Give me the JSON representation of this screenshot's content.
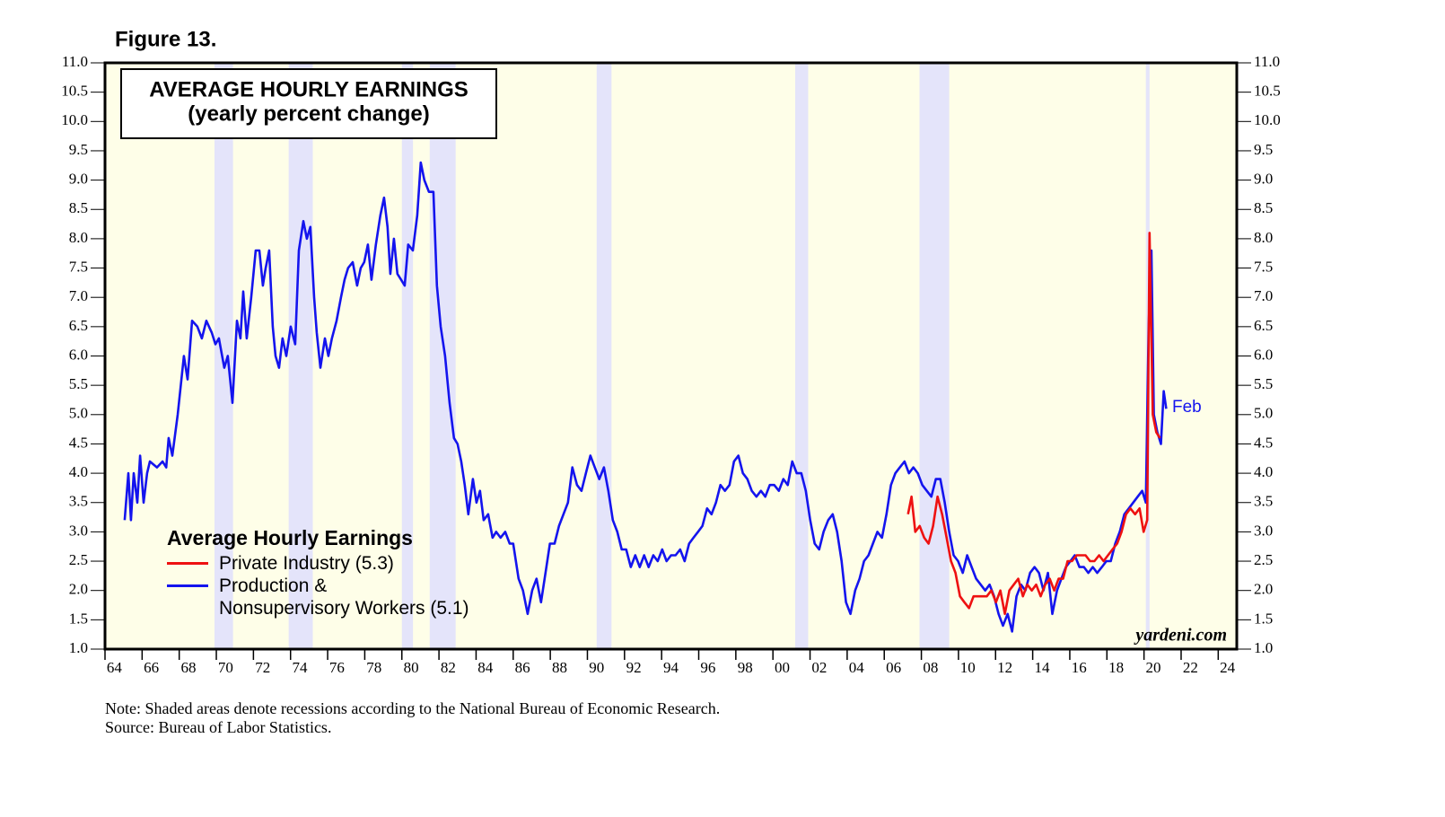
{
  "figure_label": "Figure 13.",
  "chart_data": {
    "type": "line",
    "title": "AVERAGE HOURLY EARNINGS",
    "subtitle": "(yearly percent change)",
    "legend_title": "Average Hourly Earnings",
    "annotation": "Feb",
    "watermark": "yardeni.com",
    "xlim": [
      1964,
      2025
    ],
    "ylim": [
      1,
      11
    ],
    "background": "#fefee8",
    "recession_color": "#e4e4fa",
    "recessions": [
      [
        1969.9,
        1970.9
      ],
      [
        1973.9,
        1975.2
      ],
      [
        1980.0,
        1980.6
      ],
      [
        1981.5,
        1982.9
      ],
      [
        1990.5,
        1991.3
      ],
      [
        2001.2,
        2001.9
      ],
      [
        2007.9,
        2009.5
      ],
      [
        2020.1,
        2020.3
      ]
    ],
    "xticks": [
      {
        "value": 1964,
        "label": "64"
      },
      {
        "value": 1966,
        "label": "66"
      },
      {
        "value": 1968,
        "label": "68"
      },
      {
        "value": 1970,
        "label": "70"
      },
      {
        "value": 1972,
        "label": "72"
      },
      {
        "value": 1974,
        "label": "74"
      },
      {
        "value": 1976,
        "label": "76"
      },
      {
        "value": 1978,
        "label": "78"
      },
      {
        "value": 1980,
        "label": "80"
      },
      {
        "value": 1982,
        "label": "82"
      },
      {
        "value": 1984,
        "label": "84"
      },
      {
        "value": 1986,
        "label": "86"
      },
      {
        "value": 1988,
        "label": "88"
      },
      {
        "value": 1990,
        "label": "90"
      },
      {
        "value": 1992,
        "label": "92"
      },
      {
        "value": 1994,
        "label": "94"
      },
      {
        "value": 1996,
        "label": "96"
      },
      {
        "value": 1998,
        "label": "98"
      },
      {
        "value": 2000,
        "label": "00"
      },
      {
        "value": 2002,
        "label": "02"
      },
      {
        "value": 2004,
        "label": "04"
      },
      {
        "value": 2006,
        "label": "06"
      },
      {
        "value": 2008,
        "label": "08"
      },
      {
        "value": 2010,
        "label": "10"
      },
      {
        "value": 2012,
        "label": "12"
      },
      {
        "value": 2014,
        "label": "14"
      },
      {
        "value": 2016,
        "label": "16"
      },
      {
        "value": 2018,
        "label": "18"
      },
      {
        "value": 2020,
        "label": "20"
      },
      {
        "value": 2022,
        "label": "22"
      },
      {
        "value": 2024,
        "label": "24"
      }
    ],
    "yticks": [
      {
        "value": 1,
        "label": "1.0"
      },
      1.5,
      {
        "value": 2,
        "label": "2.0"
      },
      2.5,
      {
        "value": 3,
        "label": "3.0"
      },
      3.5,
      {
        "value": 4,
        "label": "4.0"
      },
      4.5,
      {
        "value": 5,
        "label": "5.0"
      },
      5.5,
      {
        "value": 6,
        "label": "6.0"
      },
      6.5,
      {
        "value": 7,
        "label": "7.0"
      },
      7.5,
      {
        "value": 8,
        "label": "8.0"
      },
      8.5,
      {
        "value": 9,
        "label": "9.0"
      },
      9.5,
      {
        "value": 10,
        "label": "10.0"
      },
      10.5,
      {
        "value": 11,
        "label": "11.0"
      }
    ],
    "series": [
      {
        "name": "Production &\nNonsupervisory Workers (5.1)",
        "color": "#1414ee",
        "x": [
          1965.06,
          1965.26,
          1965.4,
          1965.55,
          1965.74,
          1965.89,
          1966.08,
          1966.27,
          1966.42,
          1966.8,
          1967.1,
          1967.3,
          1967.43,
          1967.63,
          1967.92,
          1968.25,
          1968.45,
          1968.69,
          1968.98,
          1969.22,
          1969.46,
          1969.75,
          1969.95,
          1970.14,
          1970.43,
          1970.62,
          1970.87,
          1971.11,
          1971.3,
          1971.45,
          1971.64,
          1971.88,
          1972.12,
          1972.32,
          1972.51,
          1972.66,
          1972.85,
          1973.04,
          1973.19,
          1973.38,
          1973.57,
          1973.77,
          1974.01,
          1974.25,
          1974.45,
          1974.69,
          1974.88,
          1975.07,
          1975.27,
          1975.41,
          1975.61,
          1975.85,
          1976.04,
          1976.23,
          1976.48,
          1976.72,
          1976.91,
          1977.1,
          1977.35,
          1977.59,
          1977.78,
          1977.97,
          1978.17,
          1978.36,
          1978.6,
          1978.84,
          1979.04,
          1979.23,
          1979.38,
          1979.57,
          1979.76,
          1979.96,
          1980.15,
          1980.34,
          1980.59,
          1980.83,
          1981.02,
          1981.21,
          1981.46,
          1981.7,
          1981.89,
          1982.09,
          1982.33,
          1982.57,
          1982.81,
          1983.0,
          1983.2,
          1983.39,
          1983.58,
          1983.83,
          1984.02,
          1984.21,
          1984.41,
          1984.65,
          1984.89,
          1985.08,
          1985.32,
          1985.57,
          1985.81,
          1986.0,
          1986.29,
          1986.53,
          1986.78,
          1987.02,
          1987.26,
          1987.5,
          1987.74,
          1987.98,
          1988.23,
          1988.47,
          1988.71,
          1988.95,
          1989.19,
          1989.44,
          1989.68,
          1989.92,
          1990.16,
          1990.4,
          1990.64,
          1990.89,
          1991.13,
          1991.37,
          1991.61,
          1991.85,
          1992.09,
          1992.34,
          1992.58,
          1992.82,
          1993.06,
          1993.3,
          1993.55,
          1993.79,
          1994.03,
          1994.27,
          1994.51,
          1994.75,
          1995.0,
          1995.24,
          1995.48,
          1995.72,
          1995.96,
          1996.2,
          1996.45,
          1996.69,
          1996.93,
          1997.17,
          1997.41,
          1997.66,
          1997.9,
          1998.14,
          1998.38,
          1998.62,
          1998.86,
          1999.11,
          1999.35,
          1999.59,
          1999.83,
          2000.07,
          2000.32,
          2000.56,
          2000.8,
          2001.04,
          2001.28,
          2001.53,
          2001.77,
          2002.01,
          2002.25,
          2002.49,
          2002.73,
          2002.98,
          2003.22,
          2003.46,
          2003.7,
          2003.94,
          2004.18,
          2004.43,
          2004.67,
          2004.91,
          2005.15,
          2005.39,
          2005.63,
          2005.88,
          2006.12,
          2006.36,
          2006.6,
          2006.84,
          2007.09,
          2007.33,
          2007.57,
          2007.81,
          2008.05,
          2008.29,
          2008.54,
          2008.78,
          2009.02,
          2009.26,
          2009.5,
          2009.74,
          2009.98,
          2010.23,
          2010.47,
          2010.71,
          2010.95,
          2011.2,
          2011.44,
          2011.68,
          2011.92,
          2012.16,
          2012.4,
          2012.65,
          2012.89,
          2013.13,
          2013.37,
          2013.61,
          2013.86,
          2014.1,
          2014.34,
          2014.58,
          2014.82,
          2015.06,
          2015.31,
          2015.55,
          2015.79,
          2016.03,
          2016.27,
          2016.52,
          2016.76,
          2017.0,
          2017.24,
          2017.48,
          2017.73,
          2017.97,
          2018.21,
          2018.45,
          2018.69,
          2018.94,
          2019.18,
          2019.42,
          2019.66,
          2019.9,
          2020.1,
          2020.25,
          2020.4,
          2020.53,
          2020.72,
          2020.91,
          2021.06,
          2021.2
        ],
        "values": [
          3.2,
          4.0,
          3.2,
          4.0,
          3.5,
          4.3,
          3.5,
          4.0,
          4.2,
          4.1,
          4.2,
          4.1,
          4.6,
          4.3,
          5.0,
          6.0,
          5.6,
          6.6,
          6.5,
          6.3,
          6.6,
          6.4,
          6.2,
          6.3,
          5.8,
          6.0,
          5.2,
          6.6,
          6.3,
          7.1,
          6.3,
          7.0,
          7.8,
          7.8,
          7.2,
          7.5,
          7.8,
          6.5,
          6.0,
          5.8,
          6.3,
          6.0,
          6.5,
          6.2,
          7.8,
          8.3,
          8.0,
          8.2,
          7.0,
          6.4,
          5.8,
          6.3,
          6.0,
          6.3,
          6.6,
          7.0,
          7.3,
          7.5,
          7.6,
          7.2,
          7.5,
          7.6,
          7.9,
          7.3,
          7.9,
          8.4,
          8.7,
          8.2,
          7.4,
          8.0,
          7.4,
          7.3,
          7.2,
          7.9,
          7.8,
          8.4,
          9.3,
          9.0,
          8.8,
          8.8,
          7.2,
          6.5,
          6.0,
          5.2,
          4.6,
          4.5,
          4.2,
          3.8,
          3.3,
          3.9,
          3.5,
          3.7,
          3.2,
          3.3,
          2.9,
          3.0,
          2.9,
          3.0,
          2.8,
          2.8,
          2.2,
          2.0,
          1.6,
          2.0,
          2.2,
          1.8,
          2.3,
          2.8,
          2.8,
          3.1,
          3.3,
          3.5,
          4.1,
          3.8,
          3.7,
          4.0,
          4.3,
          4.1,
          3.9,
          4.1,
          3.7,
          3.2,
          3.0,
          2.7,
          2.7,
          2.4,
          2.6,
          2.4,
          2.6,
          2.4,
          2.6,
          2.5,
          2.7,
          2.5,
          2.6,
          2.6,
          2.7,
          2.5,
          2.8,
          2.9,
          3.0,
          3.1,
          3.4,
          3.3,
          3.5,
          3.8,
          3.7,
          3.8,
          4.2,
          4.3,
          4.0,
          3.9,
          3.7,
          3.6,
          3.7,
          3.6,
          3.8,
          3.8,
          3.7,
          3.9,
          3.8,
          4.2,
          4.0,
          4.0,
          3.7,
          3.2,
          2.8,
          2.7,
          3.0,
          3.2,
          3.3,
          3.0,
          2.5,
          1.8,
          1.6,
          2.0,
          2.2,
          2.5,
          2.6,
          2.8,
          3.0,
          2.9,
          3.3,
          3.8,
          4.0,
          4.1,
          4.2,
          4.0,
          4.1,
          4.0,
          3.8,
          3.7,
          3.6,
          3.9,
          3.9,
          3.5,
          3.0,
          2.6,
          2.5,
          2.3,
          2.6,
          2.4,
          2.2,
          2.1,
          2.0,
          2.1,
          1.9,
          1.6,
          1.4,
          1.6,
          1.3,
          1.9,
          2.1,
          2.0,
          2.3,
          2.4,
          2.3,
          2.0,
          2.3,
          1.6,
          2.0,
          2.2,
          2.4,
          2.5,
          2.6,
          2.4,
          2.4,
          2.3,
          2.4,
          2.3,
          2.4,
          2.5,
          2.5,
          2.8,
          3.0,
          3.3,
          3.4,
          3.5,
          3.6,
          3.7,
          3.5,
          6.5,
          7.8,
          5.0,
          4.7,
          4.5,
          5.4,
          5.1
        ]
      },
      {
        "name": "Private Industry (5.3)",
        "color": "#ee1111",
        "x": [
          2007.28,
          2007.47,
          2007.67,
          2007.91,
          2008.15,
          2008.39,
          2008.63,
          2008.87,
          2009.12,
          2009.36,
          2009.6,
          2009.84,
          2010.08,
          2010.32,
          2010.57,
          2010.81,
          2011.05,
          2011.29,
          2011.53,
          2011.77,
          2012.02,
          2012.26,
          2012.5,
          2012.74,
          2012.98,
          2013.22,
          2013.47,
          2013.71,
          2013.95,
          2014.19,
          2014.43,
          2014.67,
          2014.92,
          2015.16,
          2015.4,
          2015.64,
          2015.88,
          2016.12,
          2016.37,
          2016.61,
          2016.85,
          2017.09,
          2017.33,
          2017.58,
          2017.82,
          2018.06,
          2018.3,
          2018.55,
          2018.79,
          2019.03,
          2019.27,
          2019.52,
          2019.76,
          2019.98,
          2020.17,
          2020.3,
          2020.47,
          2020.66,
          2020.86
        ],
        "values": [
          3.3,
          3.6,
          3.0,
          3.1,
          2.9,
          2.8,
          3.1,
          3.6,
          3.3,
          2.9,
          2.5,
          2.3,
          1.9,
          1.8,
          1.7,
          1.9,
          1.9,
          1.9,
          1.9,
          2.0,
          1.8,
          2.0,
          1.6,
          2.0,
          2.1,
          2.2,
          1.9,
          2.1,
          2.0,
          2.1,
          1.9,
          2.1,
          2.2,
          2.0,
          2.2,
          2.2,
          2.5,
          2.5,
          2.6,
          2.6,
          2.6,
          2.5,
          2.5,
          2.6,
          2.5,
          2.6,
          2.7,
          2.8,
          3.0,
          3.3,
          3.4,
          3.3,
          3.4,
          3.0,
          3.2,
          8.1,
          5.0,
          4.7,
          4.6
        ]
      }
    ]
  },
  "notes": [
    "Note: Shaded areas denote recessions according to the National Bureau of Economic Research.",
    "Source: Bureau of Labor Statistics."
  ]
}
